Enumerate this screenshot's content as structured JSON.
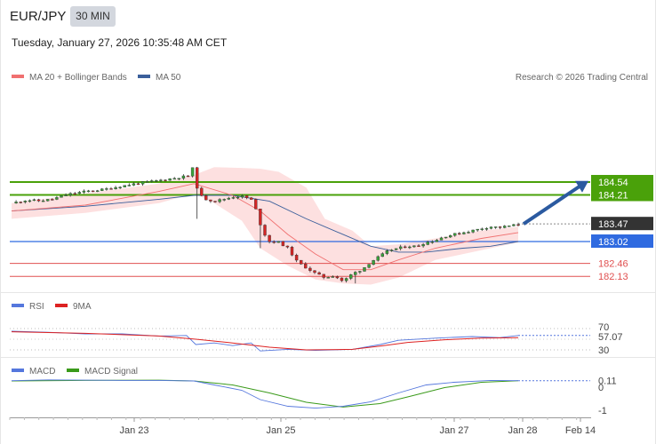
{
  "header": {
    "pair": "EUR/JPY",
    "timeframe": "30 MIN",
    "datetime": "Tuesday, January 27, 2026 10:35:48 AM CET"
  },
  "legend": {
    "ma20": "MA 20 + Bollinger Bands",
    "ma50": "MA 50",
    "copyright": "Research © 2026 Trading Central",
    "rsi": "RSI",
    "rsi_ma": "9MA",
    "macd": "MACD",
    "macd_signal": "MACD Signal"
  },
  "colors": {
    "candle_up": "#3aa13a",
    "candle_down": "#d42525",
    "ma20": "#f07070",
    "ma50": "#3b5f9b",
    "band_fill": "#fde0e0",
    "green_level": "#4aa10a",
    "blue_level": "#2f6ae0",
    "red_level": "#e05050",
    "last_price_tag": "#333333",
    "target_arrow": "#2b5aa0",
    "rsi_line": "#5577dd",
    "rsi_ma_line": "#dd2222",
    "macd_line": "#5577dd",
    "macd_signal_line": "#3a9a1a"
  },
  "chart_data": [
    {
      "type": "candlestick",
      "title": "EUR/JPY",
      "ylim": [
        181.8,
        185.2
      ],
      "x_labels": [
        "Jan 23",
        "Jan 25",
        "Jan 27",
        "Jan 28",
        "Feb 14"
      ],
      "levels": [
        {
          "value": "184.54",
          "kind": "resistance"
        },
        {
          "value": "184.21",
          "kind": "resistance"
        },
        {
          "value": "183.47",
          "kind": "last"
        },
        {
          "value": "183.02",
          "kind": "pivot"
        },
        {
          "value": "182.46",
          "kind": "support"
        },
        {
          "value": "182.13",
          "kind": "support"
        }
      ],
      "close_path": [
        [
          0,
          184.0
        ],
        [
          8,
          184.08
        ],
        [
          15,
          184.06
        ],
        [
          22,
          184.1
        ],
        [
          30,
          184.22
        ],
        [
          40,
          184.3
        ],
        [
          50,
          184.35
        ],
        [
          60,
          184.44
        ],
        [
          70,
          184.52
        ],
        [
          80,
          184.58
        ],
        [
          90,
          184.65
        ],
        [
          96,
          184.7
        ],
        [
          99,
          184.95
        ],
        [
          101,
          184.3
        ],
        [
          104,
          184.12
        ],
        [
          110,
          184.05
        ],
        [
          115,
          184.1
        ],
        [
          120,
          184.16
        ],
        [
          125,
          184.18
        ],
        [
          130,
          184.1
        ],
        [
          133,
          183.8
        ],
        [
          136,
          183.3
        ],
        [
          140,
          183.02
        ],
        [
          145,
          183.0
        ],
        [
          150,
          182.85
        ],
        [
          155,
          182.5
        ],
        [
          160,
          182.35
        ],
        [
          165,
          182.2
        ],
        [
          170,
          182.1
        ],
        [
          175,
          182.15
        ],
        [
          180,
          182.0
        ],
        [
          185,
          182.2
        ],
        [
          190,
          182.3
        ],
        [
          195,
          182.5
        ],
        [
          200,
          182.65
        ],
        [
          205,
          182.8
        ],
        [
          210,
          182.85
        ],
        [
          215,
          182.9
        ],
        [
          220,
          182.9
        ],
        [
          225,
          183.0
        ],
        [
          230,
          183.05
        ],
        [
          235,
          183.15
        ],
        [
          240,
          183.2
        ],
        [
          245,
          183.25
        ],
        [
          250,
          183.3
        ],
        [
          255,
          183.35
        ],
        [
          260,
          183.4
        ],
        [
          265,
          183.38
        ],
        [
          270,
          183.42
        ],
        [
          275,
          183.45
        ]
      ],
      "ma20": [
        [
          0,
          183.8
        ],
        [
          40,
          183.95
        ],
        [
          80,
          184.3
        ],
        [
          99,
          184.5
        ],
        [
          120,
          184.2
        ],
        [
          135,
          183.8
        ],
        [
          150,
          183.2
        ],
        [
          165,
          182.7
        ],
        [
          180,
          182.3
        ],
        [
          195,
          182.3
        ],
        [
          210,
          182.55
        ],
        [
          230,
          182.85
        ],
        [
          255,
          183.1
        ],
        [
          275,
          183.25
        ]
      ],
      "ma50": [
        [
          0,
          183.8
        ],
        [
          40,
          183.92
        ],
        [
          80,
          184.1
        ],
        [
          99,
          184.2
        ],
        [
          120,
          184.2
        ],
        [
          140,
          184.05
        ],
        [
          160,
          183.6
        ],
        [
          180,
          183.2
        ],
        [
          195,
          182.9
        ],
        [
          210,
          182.75
        ],
        [
          225,
          182.75
        ],
        [
          245,
          182.85
        ],
        [
          260,
          182.9
        ],
        [
          275,
          183.02
        ]
      ],
      "band_upper": [
        [
          0,
          184.0
        ],
        [
          40,
          184.25
        ],
        [
          80,
          184.5
        ],
        [
          99,
          184.72
        ],
        [
          110,
          184.92
        ],
        [
          125,
          184.9
        ],
        [
          135,
          184.88
        ],
        [
          145,
          184.8
        ],
        [
          160,
          184.4
        ],
        [
          170,
          183.6
        ],
        [
          185,
          183.3
        ],
        [
          195,
          182.9
        ],
        [
          210,
          182.95
        ],
        [
          230,
          183.1
        ],
        [
          255,
          183.3
        ],
        [
          275,
          183.4
        ]
      ],
      "band_lower": [
        [
          0,
          183.6
        ],
        [
          40,
          183.75
        ],
        [
          80,
          184.0
        ],
        [
          99,
          184.25
        ],
        [
          110,
          184.0
        ],
        [
          125,
          183.55
        ],
        [
          135,
          182.85
        ],
        [
          150,
          182.4
        ],
        [
          165,
          182.05
        ],
        [
          180,
          181.95
        ],
        [
          195,
          181.92
        ],
        [
          210,
          182.1
        ],
        [
          230,
          182.55
        ],
        [
          255,
          182.8
        ],
        [
          275,
          183.0
        ]
      ]
    },
    {
      "type": "line",
      "title": "RSI",
      "ylim": [
        20,
        80
      ],
      "y_ticks": [
        "70",
        "30"
      ],
      "last_value": "57.07",
      "series": [
        {
          "name": "RSI",
          "points": [
            [
              0,
              65
            ],
            [
              20,
              63
            ],
            [
              40,
              60
            ],
            [
              60,
              60
            ],
            [
              80,
              56
            ],
            [
              95,
              57
            ],
            [
              100,
              40
            ],
            [
              110,
              43
            ],
            [
              120,
              38
            ],
            [
              130,
              43
            ],
            [
              135,
              28
            ],
            [
              150,
              31
            ],
            [
              165,
              29
            ],
            [
              185,
              31
            ],
            [
              200,
              40
            ],
            [
              210,
              48
            ],
            [
              230,
              52
            ],
            [
              250,
              55
            ],
            [
              265,
              53
            ],
            [
              275,
              57
            ]
          ]
        },
        {
          "name": "9MA",
          "points": [
            [
              0,
              64
            ],
            [
              40,
              61
            ],
            [
              80,
              56
            ],
            [
              100,
              50
            ],
            [
              120,
              43
            ],
            [
              140,
              35
            ],
            [
              160,
              30
            ],
            [
              185,
              31
            ],
            [
              200,
              37
            ],
            [
              215,
              44
            ],
            [
              235,
              49
            ],
            [
              255,
              52
            ],
            [
              275,
              53
            ]
          ]
        }
      ]
    },
    {
      "type": "line",
      "title": "MACD",
      "ylim": [
        -1.2,
        0.4
      ],
      "y_ticks": [
        "0",
        "-1"
      ],
      "last_value": "0.11",
      "series": [
        {
          "name": "MACD",
          "points": [
            [
              0,
              0.11
            ],
            [
              20,
              0.14
            ],
            [
              40,
              0.13
            ],
            [
              60,
              0.12
            ],
            [
              80,
              0.12
            ],
            [
              99,
              0.1
            ],
            [
              110,
              -0.05
            ],
            [
              125,
              -0.25
            ],
            [
              135,
              -0.6
            ],
            [
              150,
              -0.85
            ],
            [
              165,
              -0.92
            ],
            [
              180,
              -0.85
            ],
            [
              195,
              -0.68
            ],
            [
              210,
              -0.35
            ],
            [
              225,
              -0.05
            ],
            [
              240,
              0.05
            ],
            [
              260,
              0.12
            ],
            [
              275,
              0.11
            ]
          ]
        },
        {
          "name": "MACD Signal",
          "points": [
            [
              0,
              0.1
            ],
            [
              40,
              0.12
            ],
            [
              80,
              0.13
            ],
            [
              99,
              0.1
            ],
            [
              120,
              -0.05
            ],
            [
              140,
              -0.35
            ],
            [
              160,
              -0.7
            ],
            [
              180,
              -0.88
            ],
            [
              200,
              -0.75
            ],
            [
              215,
              -0.5
            ],
            [
              235,
              -0.15
            ],
            [
              255,
              0.05
            ],
            [
              275,
              0.11
            ]
          ]
        }
      ]
    }
  ]
}
